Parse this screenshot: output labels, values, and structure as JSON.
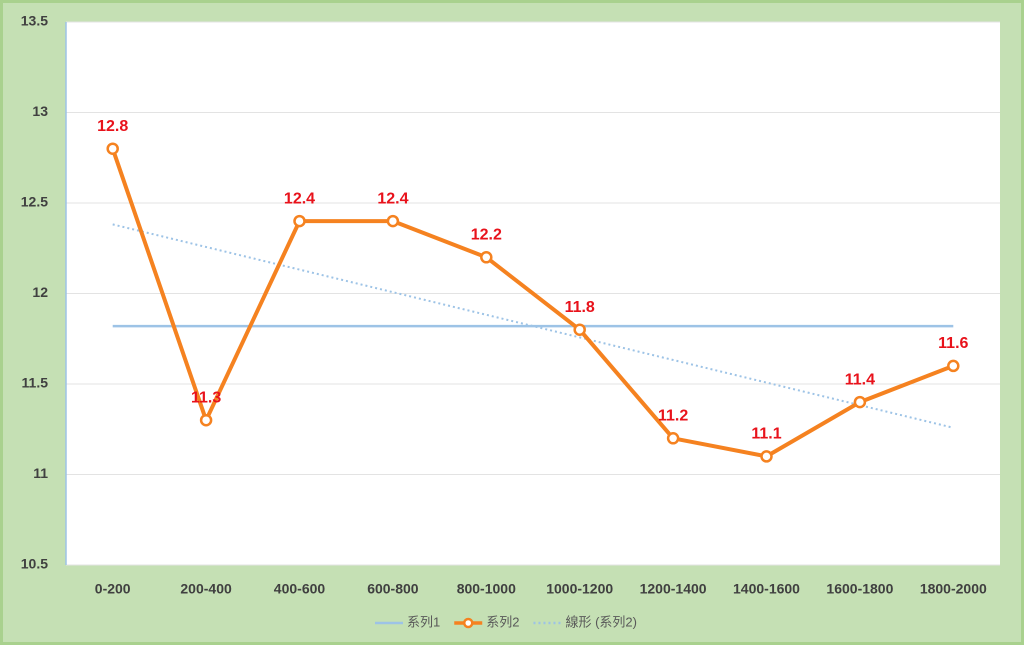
{
  "chart_data": {
    "type": "line",
    "categories": [
      "0-200",
      "200-400",
      "400-600",
      "600-800",
      "800-1000",
      "1000-1200",
      "1200-1400",
      "1400-1600",
      "1600-1800",
      "1800-2000"
    ],
    "series": [
      {
        "name": "系列1",
        "color": "#9dc3e6",
        "values": [
          11.82,
          11.82,
          11.82,
          11.82,
          11.82,
          11.82,
          11.82,
          11.82,
          11.82,
          11.82
        ]
      },
      {
        "name": "系列2",
        "color": "#f58220",
        "label_color": "#e8121b",
        "markers": true,
        "values": [
          12.8,
          11.3,
          12.4,
          12.4,
          12.2,
          11.8,
          11.2,
          11.1,
          11.4,
          11.6
        ]
      }
    ],
    "trendline": {
      "name": "線形 (系列2)",
      "color": "#9dc3e6",
      "series": 1
    },
    "ylim": [
      10.5,
      13.5
    ],
    "yticks": [
      10.5,
      11,
      11.5,
      12,
      12.5,
      13,
      13.5
    ],
    "grid": true,
    "legend": "bottom"
  }
}
